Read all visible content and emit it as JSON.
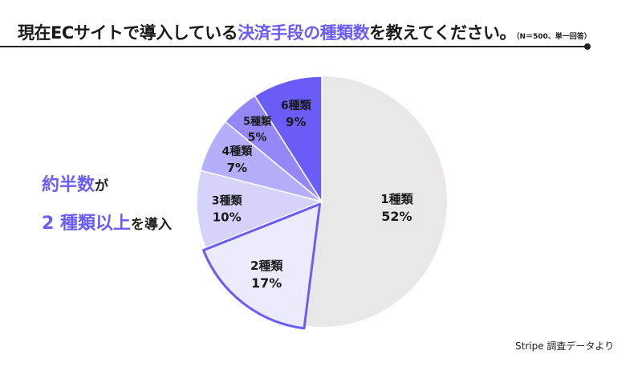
{
  "title": {
    "part1": "現在ECサイトで導入している",
    "highlight": "決済手段の種類数",
    "part2": "を教えてください。",
    "note": "（N＝500、単一回答）"
  },
  "side_note": {
    "hl1": "約半数",
    "plain1": "が",
    "hl2": "2 種類以上",
    "plain2": "を導入"
  },
  "source": "Stripe 調査データより",
  "colors": {
    "accent": "#6a5cf6",
    "one": "#e9e7e8",
    "two": "#ecebfb",
    "three": "#d6d3fb",
    "four": "#b5aefb",
    "five": "#9488f9",
    "six": "#6a5cf6"
  },
  "chart_data": {
    "type": "pie",
    "slices": [
      {
        "label": "1種類",
        "value": 52,
        "display": "52%",
        "color": "#e9e7e8"
      },
      {
        "label": "2種類",
        "value": 17,
        "display": "17%",
        "color": "#ecebfb"
      },
      {
        "label": "3種類",
        "value": 10,
        "display": "10%",
        "color": "#d6d3fb"
      },
      {
        "label": "4種類",
        "value": 7,
        "display": "7%",
        "color": "#b5aefb"
      },
      {
        "label": "5種類",
        "value": 5,
        "display": "5%",
        "color": "#9488f9"
      },
      {
        "label": "6種類",
        "value": 9,
        "display": "9%",
        "color": "#6a5cf6"
      }
    ]
  }
}
